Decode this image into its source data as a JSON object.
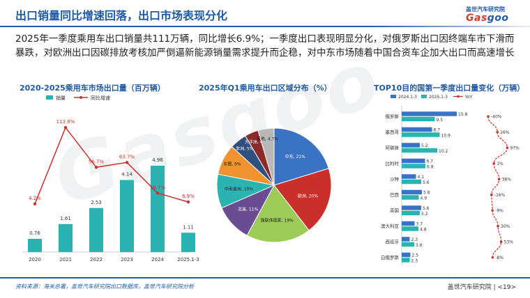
{
  "header": {
    "title": "出口销量同比增速回落，出口市场表现分化",
    "logo_cn": "盖世汽车研究院",
    "logo_mark_a": "Gas",
    "logo_mark_b": "goo"
  },
  "summary": "2025年一季度乘用车出口销量共111万辆，同比增长6.9%；一季度出口表现明显分化，对俄罗斯出口因终端车市下滑而暴跌，对欧洲出口因碳排放考核加严倒逼新能源销量需求提升而企稳，对中东市场随着中国合资车企加大出口而高速增长",
  "watermark": "Gasgoo",
  "colors": {
    "teal": "#2bb3b1",
    "blue": "#3b73c4",
    "red": "#c9302c",
    "title": "#1f5aa6"
  },
  "chart_data": [
    {
      "type": "bar",
      "title": "2020-2025乘用车市场出口量（百万辆）",
      "categories": [
        "2020",
        "2021",
        "2022",
        "2023",
        "2024",
        "2025.1-3"
      ],
      "series": [
        {
          "name": "销量",
          "values": [
            0.76,
            1.61,
            2.53,
            4.14,
            4.96,
            1.11
          ]
        },
        {
          "name": "同比增速",
          "values": [
            4.2,
            113.8,
            56.7,
            63.7,
            19.7,
            6.9
          ],
          "value_labels": [
            "4.2%",
            "113.8%",
            "56.7%",
            "63.7%",
            "19.7%",
            "6.9%"
          ]
        }
      ],
      "legend": "top-left"
    },
    {
      "type": "pie",
      "title": "2025年Q1乘用车出口区域分布（%）",
      "labels": [
        "中东",
        "欧洲",
        "独联体国家",
        "北美",
        "中南美洲",
        "东盟",
        "非洲",
        "大洋洲",
        "其他"
      ],
      "values": [
        21,
        20,
        19,
        11,
        10,
        9,
        5,
        4,
        4.7
      ],
      "display_labels": [
        "中东, 21%",
        "欧洲, 20%",
        "独联体国家, 19%",
        "北美, 11%",
        "中南美洲, 10%",
        "东盟, 9%",
        "非洲, 5%",
        "大洋洲, 4%",
        "其他, 4.7%"
      ],
      "colors": [
        "#3b73c4",
        "#c9302c",
        "#9ccb57",
        "#6a4c93",
        "#2bb3b1",
        "#f0922f",
        "#2f4f7f",
        "#8b2a2a",
        "#b8b8b8"
      ]
    },
    {
      "type": "bar",
      "title": "TOP10目的国第一季度出口量变化（万辆）",
      "orientation": "horizontal",
      "categories": [
        "俄罗斯",
        "墨西哥",
        "阿联酋",
        "比利时",
        "沙特",
        "巴西",
        "英国",
        "澳大利亚",
        "西班牙",
        "白俄罗斯"
      ],
      "series": [
        {
          "name": "2024.1-3",
          "values": [
            15.8,
            8.7,
            5.2,
            6.7,
            4.1,
            5.8,
            5.6,
            3.7,
            2.3,
            2.5
          ]
        },
        {
          "name": "2025.1-3",
          "values": [
            9.5,
            10.9,
            10.2,
            6.8,
            5.6,
            4.9,
            5.2,
            4.8,
            3.6,
            2.3
          ]
        },
        {
          "name": "YoY",
          "values": [
            -40,
            26,
            97,
            1,
            38,
            -16,
            -9,
            30,
            53,
            -8
          ],
          "value_labels": [
            "-40%",
            "26%",
            "97%",
            "1%",
            "38%",
            "-16%",
            "-9%",
            "30%",
            "53%",
            "-8%"
          ]
        }
      ],
      "legend": "top"
    }
  ],
  "footer": {
    "source": "资料来源：海关总署，盖世汽车研究院出口数据库，盖世汽车研究院分析",
    "brand": "盖世汽车研究院 | <19>"
  }
}
